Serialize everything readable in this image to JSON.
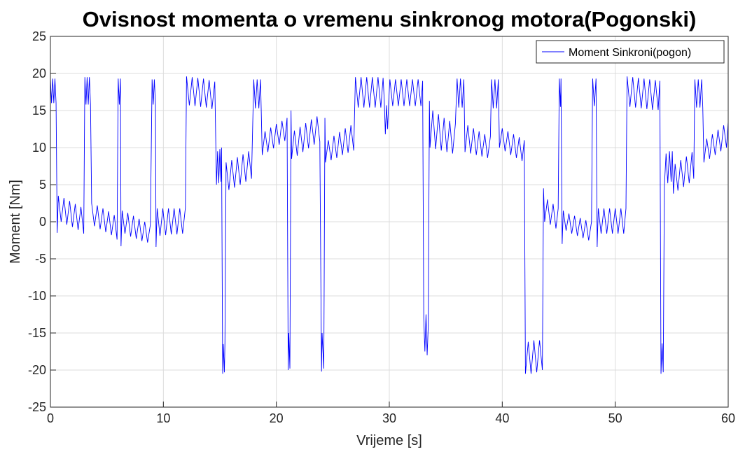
{
  "chart_data": {
    "type": "line",
    "title": "Ovisnost momenta o vremenu sinkronog motora(Pogonski)",
    "x_label": "Vrijeme [s]",
    "y_label": "Moment [Nm]",
    "xlim": [
      0,
      60
    ],
    "ylim": [
      -25,
      25
    ],
    "xticks": [
      0,
      10,
      20,
      30,
      40,
      50,
      60
    ],
    "yticks": [
      -25,
      -20,
      -15,
      -10,
      -5,
      0,
      5,
      10,
      15,
      20,
      25
    ],
    "grid": true,
    "legend": "upper right",
    "x": [
      0,
      0.1,
      0.2,
      0.3,
      0.4,
      0.5,
      0.6,
      0.7,
      0.95,
      1.2,
      1.45,
      1.7,
      1.95,
      2.2,
      2.45,
      2.7,
      2.95,
      3.05,
      3.15,
      3.25,
      3.35,
      3.45,
      3.55,
      3.65,
      3.9,
      4.15,
      4.4,
      4.65,
      4.9,
      5.15,
      5.4,
      5.65,
      5.9,
      6,
      6.1,
      6.2,
      6.25,
      6.35,
      6.6,
      6.85,
      7.1,
      7.35,
      7.6,
      7.85,
      8.1,
      8.35,
      8.6,
      8.85,
      9,
      9.1,
      9.2,
      9.3,
      9.35,
      9.45,
      9.7,
      9.95,
      10.2,
      10.45,
      10.7,
      10.95,
      11.2,
      11.45,
      11.7,
      11.95,
      12.05,
      12.3,
      12.55,
      12.8,
      13.05,
      13.3,
      13.55,
      13.8,
      14.05,
      14.3,
      14.55,
      14.7,
      14.8,
      14.9,
      15,
      15.1,
      15.15,
      15.25,
      15.3,
      15.4,
      15.45,
      15.55,
      15.8,
      16.05,
      16.3,
      16.55,
      16.8,
      17.05,
      17.3,
      17.55,
      17.8,
      18,
      18.15,
      18.3,
      18.45,
      18.6,
      18.75,
      19,
      19.25,
      19.5,
      19.75,
      20,
      20.25,
      20.5,
      20.75,
      20.95,
      21.05,
      21.1,
      21.2,
      21.3,
      21.35,
      21.6,
      21.85,
      22.1,
      22.35,
      22.6,
      22.85,
      23.1,
      23.35,
      23.6,
      23.85,
      24,
      24.05,
      24.2,
      24.3,
      24.35,
      24.6,
      24.85,
      25.1,
      25.35,
      25.6,
      25.85,
      26.1,
      26.35,
      26.6,
      26.85,
      27,
      27.25,
      27.5,
      27.75,
      28,
      28.25,
      28.5,
      28.75,
      29,
      29.25,
      29.45,
      29.55,
      29.65,
      29.75,
      29.85,
      29.95,
      30.05,
      30.3,
      30.55,
      30.8,
      31.05,
      31.3,
      31.55,
      31.8,
      32.05,
      32.3,
      32.55,
      32.8,
      32.95,
      33.05,
      33.15,
      33.25,
      33.35,
      33.45,
      33.55,
      33.6,
      33.85,
      34.1,
      34.35,
      34.6,
      34.85,
      35.1,
      35.35,
      35.6,
      35.85,
      36,
      36.15,
      36.3,
      36.45,
      36.6,
      36.7,
      36.95,
      37.2,
      37.45,
      37.7,
      37.95,
      38.2,
      38.45,
      38.7,
      38.95,
      39.05,
      39.2,
      39.35,
      39.5,
      39.65,
      39.75,
      40,
      40.25,
      40.5,
      40.75,
      41,
      41.25,
      41.5,
      41.75,
      41.95,
      42.05,
      42.3,
      42.55,
      42.8,
      43.05,
      43.3,
      43.55,
      43.65,
      43.75,
      44,
      44.25,
      44.5,
      44.75,
      44.95,
      45.05,
      45.15,
      45.2,
      45.3,
      45.4,
      45.65,
      45.9,
      46.15,
      46.4,
      46.65,
      46.9,
      47.15,
      47.4,
      47.65,
      47.9,
      48,
      48.15,
      48.3,
      48.4,
      48.5,
      48.75,
      49,
      49.25,
      49.5,
      49.75,
      50,
      50.25,
      50.5,
      50.75,
      50.95,
      51.05,
      51.3,
      51.55,
      51.8,
      52.05,
      52.3,
      52.55,
      52.8,
      53.05,
      53.3,
      53.55,
      53.8,
      53.95,
      54.05,
      54.15,
      54.25,
      54.35,
      54.5,
      54.65,
      54.8,
      54.95,
      55.05,
      55.15,
      55.3,
      55.55,
      55.8,
      56.05,
      56.3,
      56.55,
      56.8,
      56.95,
      57.05,
      57.2,
      57.35,
      57.5,
      57.65,
      57.75,
      57.85,
      58.1,
      58.35,
      58.6,
      58.85,
      59.1,
      59.35,
      59.6,
      59.85,
      60
    ],
    "series": [
      {
        "name": "Moment Sinkroni(pogon)",
        "color": "#0000ff",
        "values": [
          19.3,
          16,
          19.3,
          16,
          19.3,
          16,
          -1.5,
          3.5,
          0,
          3.2,
          -0.4,
          2.8,
          -0.7,
          2.4,
          -1.1,
          2,
          -1.6,
          19.5,
          15.8,
          19.5,
          15.8,
          19.5,
          15.8,
          2.5,
          -0.6,
          2.2,
          -1,
          1.8,
          -1.4,
          1.4,
          -1.8,
          0.9,
          -2.4,
          19.3,
          15.8,
          19.3,
          -3.3,
          1.5,
          -1.6,
          1.2,
          -2,
          0.8,
          -2.3,
          0.4,
          -2.6,
          0,
          -2.8,
          -0.4,
          19.2,
          15.8,
          19.2,
          15.8,
          -3.4,
          1.8,
          -1.9,
          1.8,
          -1.8,
          1.8,
          -1.7,
          1.8,
          -1.7,
          1.8,
          -1.6,
          1.9,
          19.6,
          15.7,
          19.5,
          15.6,
          19.4,
          15.5,
          19.3,
          15.4,
          19.1,
          15.2,
          18.9,
          5,
          9.5,
          5.2,
          9.8,
          5.4,
          10,
          -20.5,
          -16.5,
          -20.3,
          -16.3,
          8,
          4.3,
          8.3,
          4.6,
          8.7,
          5,
          9.1,
          5.4,
          9.5,
          5.8,
          19.2,
          15.3,
          19.2,
          15.3,
          19.2,
          9,
          12.2,
          9.4,
          12.7,
          9.9,
          13.2,
          10.4,
          13.6,
          10.9,
          14,
          -20,
          -15,
          -19.8,
          15,
          8.5,
          12.3,
          8.9,
          12.8,
          9.4,
          13.3,
          9.9,
          13.8,
          10.4,
          14.2,
          10.8,
          -20.2,
          -15,
          -19.8,
          14,
          8,
          11,
          8.3,
          11.6,
          8.6,
          12.1,
          9,
          12.6,
          9.3,
          13,
          9.6,
          19.5,
          15.4,
          19.5,
          15.4,
          19.5,
          15.4,
          19.5,
          15.4,
          19.5,
          15.4,
          19.4,
          16.5,
          11.8,
          15.7,
          12.5,
          16.3,
          19.2,
          15.6,
          19.2,
          15.6,
          19.2,
          15.6,
          19.2,
          15.6,
          19.2,
          15.6,
          19.2,
          15.6,
          19,
          -13,
          -17.5,
          -12.5,
          -18,
          -14,
          16.3,
          10,
          15,
          9.8,
          14.5,
          9.6,
          14,
          9.4,
          13.6,
          9.2,
          13.2,
          19.3,
          15.4,
          19.3,
          15.4,
          19.2,
          9.4,
          13,
          9.2,
          12.6,
          9,
          12.2,
          8.8,
          11.8,
          8.6,
          11.5,
          19.2,
          15.3,
          19.2,
          15.3,
          19.2,
          10,
          12.6,
          9.5,
          12.2,
          9,
          11.8,
          8.6,
          11.4,
          8.2,
          11,
          -20.5,
          -16.2,
          -20.5,
          -16,
          -20.3,
          -16,
          -20,
          4.5,
          0,
          3,
          -0.4,
          2.4,
          -0.9,
          1.8,
          19.3,
          15.5,
          19.3,
          -3,
          1.5,
          -1.2,
          1.1,
          -1.6,
          0.8,
          -1.9,
          0.5,
          -2.2,
          0.2,
          -2.5,
          0,
          19.3,
          15.6,
          19.3,
          -3.4,
          1.8,
          -1.6,
          1.8,
          -1.6,
          1.8,
          -1.6,
          1.8,
          -1.6,
          1.8,
          -1.6,
          1.8,
          19.6,
          15.5,
          19.5,
          15.4,
          19.4,
          15.3,
          19.3,
          15.2,
          19.2,
          15.1,
          19.1,
          15.1,
          19,
          -20.5,
          -16.4,
          -20.3,
          4.8,
          9.2,
          5.2,
          9.5,
          5.4,
          9.5,
          3.8,
          7.8,
          4.2,
          8.3,
          4.7,
          8.8,
          5.2,
          9.4,
          5.8,
          19.2,
          15.4,
          19.2,
          15.4,
          19.2,
          15.4,
          8,
          11.2,
          8.5,
          11.8,
          9,
          12.4,
          9.5,
          13,
          10,
          13.5
        ]
      }
    ]
  }
}
